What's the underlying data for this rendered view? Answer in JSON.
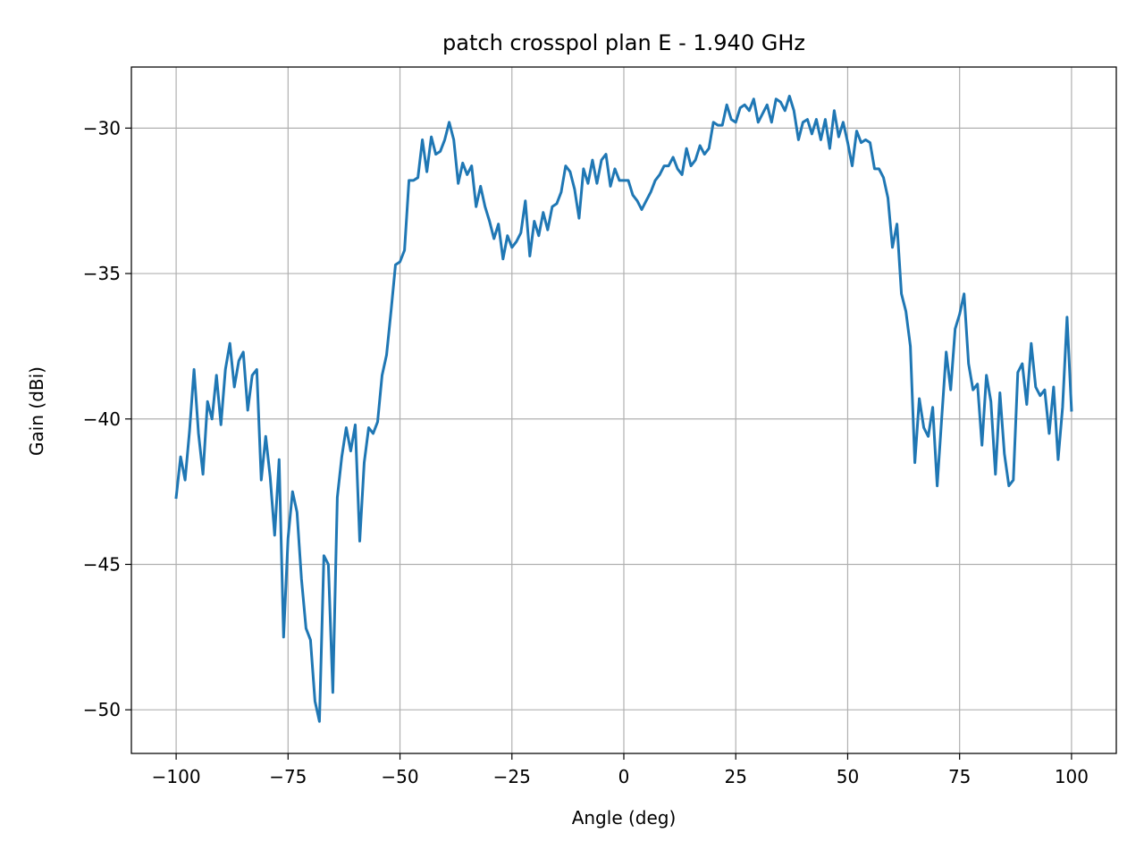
{
  "chart_data": {
    "type": "line",
    "title": "patch crosspol plan E - 1.940 GHz",
    "xlabel": "Angle (deg)",
    "ylabel": "Gain (dBi)",
    "xlim": [
      -110,
      110
    ],
    "ylim": [
      -51.5,
      -27.9
    ],
    "xticks": [
      -100,
      -75,
      -50,
      -25,
      0,
      25,
      50,
      75,
      100
    ],
    "xtick_labels": [
      "−100",
      "−75",
      "−50",
      "−25",
      "0",
      "25",
      "50",
      "75",
      "100"
    ],
    "yticks": [
      -50,
      -45,
      -40,
      -35,
      -30
    ],
    "ytick_labels": [
      "−50",
      "−45",
      "−40",
      "−35",
      "−30"
    ],
    "grid": true,
    "line_color": "#1f77b4",
    "series": [
      {
        "x": [
          -100,
          -99,
          -98,
          -97,
          -96,
          -95,
          -94,
          -93,
          -92,
          -91,
          -90,
          -89,
          -88,
          -87,
          -86,
          -85,
          -84,
          -83,
          -82,
          -81,
          -80,
          -79,
          -78,
          -77,
          -76,
          -75,
          -74,
          -73,
          -72,
          -71,
          -70,
          -69,
          -68,
          -67,
          -66,
          -65,
          -64,
          -63,
          -62,
          -61,
          -60,
          -59,
          -58,
          -57,
          -56,
          -55,
          -54,
          -53,
          -52,
          -51,
          -50,
          -49,
          -48,
          -47,
          -46,
          -45,
          -44,
          -43,
          -42,
          -41,
          -40,
          -39,
          -38,
          -37,
          -36,
          -35,
          -34,
          -33,
          -32,
          -31,
          -30,
          -29,
          -28,
          -27,
          -26,
          -25,
          -24,
          -23,
          -22,
          -21,
          -20,
          -19,
          -18,
          -17,
          -16,
          -15,
          -14,
          -13,
          -12,
          -11,
          -10,
          -9,
          -8,
          -7,
          -6,
          -5,
          -4,
          -3,
          -2,
          -1,
          0,
          1,
          2,
          3,
          4,
          5,
          6,
          7,
          8,
          9,
          10,
          11,
          12,
          13,
          14,
          15,
          16,
          17,
          18,
          19,
          20,
          21,
          22,
          23,
          24,
          25,
          26,
          27,
          28,
          29,
          30,
          31,
          32,
          33,
          34,
          35,
          36,
          37,
          38,
          39,
          40,
          41,
          42,
          43,
          44,
          45,
          46,
          47,
          48,
          49,
          50,
          51,
          52,
          53,
          54,
          55,
          56,
          57,
          58,
          59,
          60,
          61,
          62,
          63,
          64,
          65,
          66,
          67,
          68,
          69,
          70,
          71,
          72,
          73,
          74,
          75,
          76,
          77,
          78,
          79,
          80,
          81,
          82,
          83,
          84,
          85,
          86,
          87,
          88,
          89,
          90,
          91,
          92,
          93,
          94,
          95,
          96,
          97,
          98,
          99,
          100
        ],
        "y": [
          -42.7,
          -41.3,
          -42.1,
          -40.4,
          -38.3,
          -40.5,
          -41.9,
          -39.4,
          -40.0,
          -38.5,
          -40.2,
          -38.3,
          -37.4,
          -38.9,
          -38.0,
          -37.7,
          -39.7,
          -38.5,
          -38.3,
          -42.1,
          -40.6,
          -42.0,
          -44.0,
          -41.4,
          -47.5,
          -44.1,
          -42.5,
          -43.2,
          -45.5,
          -47.2,
          -47.6,
          -49.7,
          -50.4,
          -44.7,
          -45.0,
          -49.4,
          -42.7,
          -41.3,
          -40.3,
          -41.1,
          -40.2,
          -44.2,
          -41.5,
          -40.3,
          -40.5,
          -40.1,
          -38.5,
          -37.8,
          -36.3,
          -34.7,
          -34.6,
          -34.2,
          -31.8,
          -31.8,
          -31.7,
          -30.4,
          -31.5,
          -30.3,
          -30.9,
          -30.8,
          -30.4,
          -29.8,
          -30.4,
          -31.9,
          -31.2,
          -31.6,
          -31.3,
          -32.7,
          -32.0,
          -32.7,
          -33.2,
          -33.8,
          -33.3,
          -34.5,
          -33.7,
          -34.1,
          -33.9,
          -33.6,
          -32.5,
          -34.4,
          -33.2,
          -33.7,
          -32.9,
          -33.5,
          -32.7,
          -32.6,
          -32.2,
          -31.3,
          -31.5,
          -32.1,
          -33.1,
          -31.4,
          -31.9,
          -31.1,
          -31.9,
          -31.1,
          -30.9,
          -32.0,
          -31.4,
          -31.8,
          -31.8,
          -31.8,
          -32.3,
          -32.5,
          -32.8,
          -32.5,
          -32.2,
          -31.8,
          -31.6,
          -31.3,
          -31.3,
          -31.0,
          -31.4,
          -31.6,
          -30.7,
          -31.3,
          -31.1,
          -30.6,
          -30.9,
          -30.7,
          -29.8,
          -29.9,
          -29.9,
          -29.2,
          -29.7,
          -29.8,
          -29.3,
          -29.2,
          -29.4,
          -29.0,
          -29.8,
          -29.5,
          -29.2,
          -29.8,
          -29.0,
          -29.1,
          -29.4,
          -28.9,
          -29.4,
          -30.4,
          -29.8,
          -29.7,
          -30.2,
          -29.7,
          -30.4,
          -29.7,
          -30.7,
          -29.4,
          -30.3,
          -29.8,
          -30.5,
          -31.3,
          -30.1,
          -30.5,
          -30.4,
          -30.5,
          -31.4,
          -31.4,
          -31.7,
          -32.4,
          -34.1,
          -33.3,
          -35.7,
          -36.3,
          -37.5,
          -41.5,
          -39.3,
          -40.3,
          -40.6,
          -39.6,
          -42.3,
          -40.0,
          -37.7,
          -39.0,
          -36.9,
          -36.4,
          -35.7,
          -38.1,
          -39.0,
          -38.8,
          -40.9,
          -38.5,
          -39.4,
          -41.9,
          -39.1,
          -41.2,
          -42.3,
          -42.1,
          -38.4,
          -38.1,
          -39.5,
          -37.4,
          -38.9,
          -39.2,
          -39.0,
          -40.5,
          -38.9,
          -41.4,
          -39.6,
          -36.5,
          -39.7
        ]
      }
    ]
  }
}
